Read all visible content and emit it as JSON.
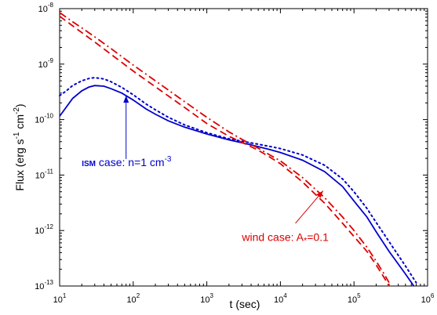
{
  "chart_data": {
    "type": "line",
    "xscale": "log",
    "yscale": "log",
    "xlim": [
      10,
      1000000
    ],
    "ylim": [
      1e-13,
      1e-08
    ],
    "xlabel": "t (sec)",
    "ylabel": "Flux (erg s-1 cm-2)",
    "ylabel_parts": {
      "pre": "Flux (erg s",
      "sup1": "-1",
      "mid": " cm",
      "sup2": "-2",
      "post": ")"
    },
    "x_ticks": [
      {
        "value": 10,
        "base": "10",
        "exp": "1"
      },
      {
        "value": 100,
        "base": "10",
        "exp": "2"
      },
      {
        "value": 1000,
        "base": "10",
        "exp": "3"
      },
      {
        "value": 10000,
        "base": "10",
        "exp": "4"
      },
      {
        "value": 100000,
        "base": "10",
        "exp": "5"
      },
      {
        "value": 1000000,
        "base": "10",
        "exp": "6"
      }
    ],
    "y_ticks": [
      {
        "value": 1e-13,
        "base": "10",
        "exp": "-13"
      },
      {
        "value": 1e-12,
        "base": "10",
        "exp": "-12"
      },
      {
        "value": 1e-11,
        "base": "10",
        "exp": "-11"
      },
      {
        "value": 1e-10,
        "base": "10",
        "exp": "-10"
      },
      {
        "value": 1e-09,
        "base": "10",
        "exp": "-9"
      },
      {
        "value": 1e-08,
        "base": "10",
        "exp": "-8"
      }
    ],
    "grid": false,
    "series": [
      {
        "color": "#0000cc",
        "style": "solid",
        "points": [
          [
            10,
            1.15e-10
          ],
          [
            12,
            1.6e-10
          ],
          [
            15,
            2.4e-10
          ],
          [
            20,
            3.3e-10
          ],
          [
            25,
            3.85e-10
          ],
          [
            30,
            4.1e-10
          ],
          [
            40,
            4e-10
          ],
          [
            50,
            3.6e-10
          ],
          [
            70,
            3e-10
          ],
          [
            100,
            2.25e-10
          ],
          [
            150,
            1.55e-10
          ],
          [
            200,
            1.25e-10
          ],
          [
            300,
            9.5e-11
          ],
          [
            500,
            7.3e-11
          ],
          [
            1000,
            5.5e-11
          ],
          [
            2000,
            4.3e-11
          ],
          [
            4000,
            3.5e-11
          ],
          [
            7000,
            2.9e-11
          ],
          [
            10000,
            2.55e-11
          ],
          [
            20000,
            1.85e-11
          ],
          [
            40000,
            1.15e-11
          ],
          [
            70000,
            6.2e-12
          ],
          [
            100000,
            3.4e-12
          ],
          [
            150000,
            1.75e-12
          ],
          [
            200000,
            9.5e-13
          ],
          [
            300000,
            4.2e-13
          ],
          [
            500000,
            1.65e-13
          ],
          [
            650000,
            1e-13
          ]
        ]
      },
      {
        "color": "#0000cc",
        "style": "dotted",
        "points": [
          [
            10,
            2.7e-10
          ],
          [
            12,
            3.2e-10
          ],
          [
            15,
            4.1e-10
          ],
          [
            20,
            5e-10
          ],
          [
            25,
            5.5e-10
          ],
          [
            30,
            5.7e-10
          ],
          [
            40,
            5.4e-10
          ],
          [
            50,
            4.8e-10
          ],
          [
            70,
            3.8e-10
          ],
          [
            100,
            2.8e-10
          ],
          [
            150,
            1.9e-10
          ],
          [
            200,
            1.5e-10
          ],
          [
            300,
            1.1e-10
          ],
          [
            500,
            8e-11
          ],
          [
            1000,
            5.8e-11
          ],
          [
            2000,
            4.5e-11
          ],
          [
            4000,
            3.8e-11
          ],
          [
            7000,
            3.3e-11
          ],
          [
            10000,
            3e-11
          ],
          [
            20000,
            2.3e-11
          ],
          [
            40000,
            1.5e-11
          ],
          [
            70000,
            8.5e-12
          ],
          [
            100000,
            5e-12
          ],
          [
            150000,
            2.5e-12
          ],
          [
            200000,
            1.4e-12
          ],
          [
            300000,
            6.3e-13
          ],
          [
            500000,
            2.3e-13
          ],
          [
            700000,
            1.15e-13
          ]
        ]
      },
      {
        "color": "#dd0000",
        "style": "dashed",
        "points": [
          [
            10,
            7.3e-09
          ],
          [
            15,
            4.9e-09
          ],
          [
            20,
            3.7e-09
          ],
          [
            30,
            2.5e-09
          ],
          [
            50,
            1.5e-09
          ],
          [
            100,
            7.5e-10
          ],
          [
            200,
            3.9e-10
          ],
          [
            500,
            1.65e-10
          ],
          [
            1000,
            8.5e-11
          ],
          [
            2000,
            5e-11
          ],
          [
            3000,
            3.9e-11
          ],
          [
            5000,
            2.8e-11
          ],
          [
            7000,
            2.15e-11
          ],
          [
            10000,
            1.6e-11
          ],
          [
            20000,
            7.5e-12
          ],
          [
            40000,
            3.1e-12
          ],
          [
            70000,
            1.35e-12
          ],
          [
            100000,
            7.8e-13
          ],
          [
            150000,
            4.2e-13
          ],
          [
            200000,
            2.4e-13
          ],
          [
            250000,
            1.5e-13
          ],
          [
            300000,
            1e-13
          ]
        ]
      },
      {
        "color": "#dd0000",
        "style": "dashdot",
        "points": [
          [
            10,
            8.5e-09
          ],
          [
            15,
            5.8e-09
          ],
          [
            20,
            4.5e-09
          ],
          [
            30,
            3.1e-09
          ],
          [
            50,
            1.9e-09
          ],
          [
            100,
            9.6e-10
          ],
          [
            200,
            5e-10
          ],
          [
            500,
            2.1e-10
          ],
          [
            1000,
            1.1e-10
          ],
          [
            2000,
            6e-11
          ],
          [
            3000,
            4.4e-11
          ],
          [
            5000,
            3.05e-11
          ],
          [
            7000,
            2.35e-11
          ],
          [
            10000,
            1.8e-11
          ],
          [
            20000,
            9e-12
          ],
          [
            40000,
            3.9e-12
          ],
          [
            70000,
            1.75e-12
          ],
          [
            100000,
            1e-12
          ],
          [
            150000,
            5e-13
          ],
          [
            200000,
            2.8e-13
          ],
          [
            260000,
            1.6e-13
          ],
          [
            300000,
            1.15e-13
          ]
        ]
      }
    ],
    "annotations": [
      {
        "color": "#0000cc",
        "small": "ISM",
        "text": " case: n=1 cm",
        "sup": "-3",
        "sub": "",
        "tail": "",
        "label_at": [
          20,
          1.45e-11
        ],
        "arrow_from": [
          80,
          1.95e-11
        ],
        "arrow_to": [
          80,
          2.7e-10
        ]
      },
      {
        "color": "#dd0000",
        "small": "",
        "text": "wind case: A",
        "sup": "",
        "sub": "*",
        "tail": "=0.1",
        "label_at": [
          3000,
          6.5e-13
        ],
        "arrow_from": [
          16000,
          1.35e-12
        ],
        "arrow_to": [
          38000,
          5.2e-12
        ]
      }
    ]
  }
}
